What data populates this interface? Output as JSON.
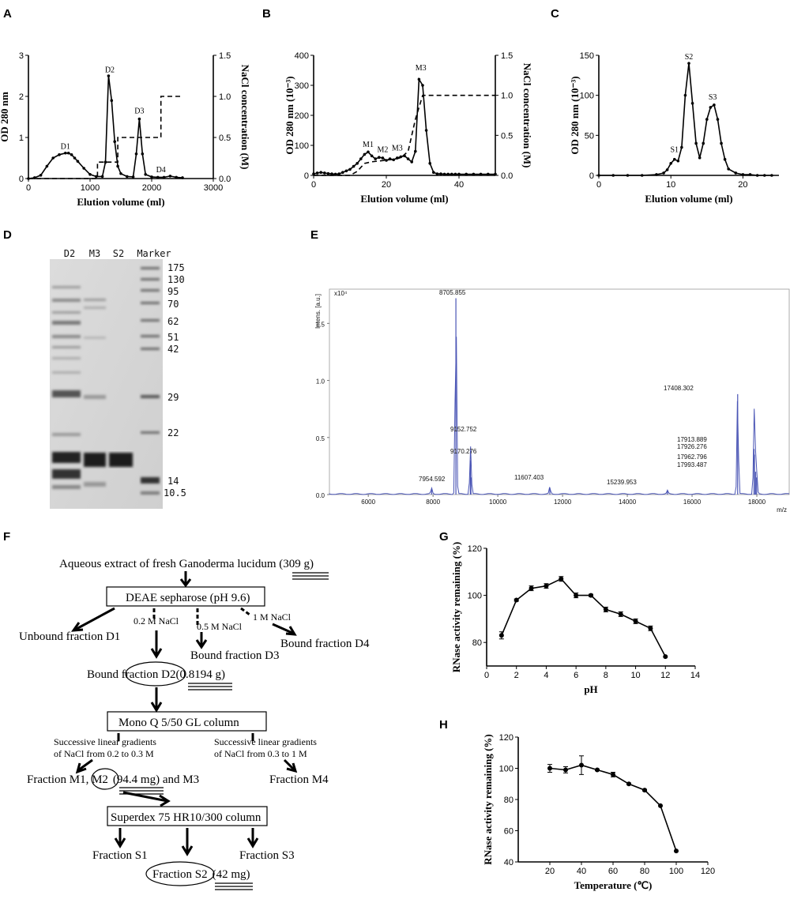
{
  "panel_labels": {
    "A": "A",
    "B": "B",
    "C": "C",
    "D": "D",
    "E": "E",
    "F": "F",
    "G": "G",
    "H": "H"
  },
  "chart_data": [
    {
      "panel": "A",
      "type": "line",
      "xlabel": "Elution volume (ml)",
      "ylabel": "OD 280 nm",
      "y2label": "NaCl concentration (M)",
      "xlim": [
        0,
        3000
      ],
      "ylim": [
        0,
        3
      ],
      "y2lim": [
        0,
        1.5
      ],
      "xticks": [
        "0",
        "1000",
        "2000",
        "3000"
      ],
      "yticks": [
        "0",
        "1",
        "2",
        "3"
      ],
      "y2ticks": [
        "0.0",
        "0.5",
        "1.0",
        "1.5"
      ],
      "peak_labels": [
        {
          "text": "D1",
          "x": 600,
          "y": 0.68
        },
        {
          "text": "D2",
          "x": 1320,
          "y": 2.55
        },
        {
          "text": "D3",
          "x": 1800,
          "y": 1.55
        },
        {
          "text": "D4",
          "x": 2150,
          "y": 0.12
        }
      ],
      "series": [
        {
          "line": "solid",
          "marker": "dot",
          "x": [
            0,
            100,
            200,
            300,
            400,
            500,
            600,
            650,
            700,
            750,
            800,
            900,
            1000,
            1100,
            1200,
            1250,
            1300,
            1350,
            1400,
            1450,
            1500,
            1600,
            1700,
            1750,
            1800,
            1850,
            1900,
            2000,
            2100,
            2200,
            2300,
            2400,
            2500
          ],
          "y": [
            0,
            0.02,
            0.08,
            0.3,
            0.5,
            0.58,
            0.62,
            0.62,
            0.58,
            0.5,
            0.42,
            0.25,
            0.1,
            0.05,
            0.05,
            0.4,
            2.5,
            1.9,
            0.9,
            0.3,
            0.12,
            0.05,
            0.04,
            0.6,
            1.45,
            0.6,
            0.1,
            0.04,
            0.03,
            0.03,
            0.06,
            0.03,
            0.02
          ]
        },
        {
          "line": "dashed",
          "axis": "y2",
          "x": [
            0,
            1120,
            1120,
            1450,
            1450,
            1550,
            1550,
            1850,
            1850,
            2150,
            2150,
            2500
          ],
          "y": [
            0,
            0,
            0.2,
            0.2,
            0.5,
            0.5,
            0.5,
            0.5,
            0.5,
            0.5,
            1.0,
            1.0
          ]
        }
      ]
    },
    {
      "panel": "B",
      "type": "line",
      "xlabel": "Elution volume (ml)",
      "ylabel": "OD 280 nm (10⁻³)",
      "y2label": "NaCl concentration (M)",
      "xlim": [
        0,
        50
      ],
      "ylim": [
        0,
        400
      ],
      "y2lim": [
        0,
        1.5
      ],
      "xticks": [
        "0",
        "20",
        "40"
      ],
      "yticks": [
        "0",
        "100",
        "200",
        "300",
        "400"
      ],
      "y2ticks": [
        "0.0",
        "0.5",
        "1.0",
        "1.5"
      ],
      "peak_labels": [
        {
          "text": "M1",
          "x": 15,
          "y": 90
        },
        {
          "text": "M2",
          "x": 19,
          "y": 72
        },
        {
          "text": "M3",
          "x": 23,
          "y": 78
        },
        {
          "text": "M3",
          "x": 29.5,
          "y": 345
        }
      ],
      "series": [
        {
          "line": "solid",
          "marker": "dot",
          "x": [
            0,
            1,
            2,
            3,
            4,
            5,
            6,
            7,
            8,
            9,
            10,
            11,
            12,
            13,
            14,
            15,
            16,
            17,
            18,
            19,
            20,
            21,
            22,
            23,
            24,
            25,
            26,
            27,
            28,
            29,
            30,
            31,
            32,
            33,
            34,
            35,
            36,
            37,
            38,
            39,
            40,
            42,
            44,
            46,
            48,
            50
          ],
          "y": [
            5,
            8,
            10,
            8,
            6,
            5,
            4,
            5,
            10,
            15,
            20,
            30,
            40,
            55,
            70,
            78,
            65,
            55,
            60,
            58,
            50,
            55,
            52,
            58,
            62,
            65,
            55,
            45,
            80,
            320,
            300,
            150,
            40,
            10,
            5,
            5,
            4,
            4,
            4,
            4,
            4,
            4,
            4,
            4,
            4,
            4
          ]
        },
        {
          "line": "dashed",
          "axis": "y2",
          "x": [
            0,
            10,
            12,
            14,
            16,
            18,
            20,
            22,
            24,
            26,
            28,
            30,
            50
          ],
          "y": [
            0,
            0,
            0.05,
            0.15,
            0.17,
            0.18,
            0.19,
            0.2,
            0.22,
            0.3,
            0.7,
            1.0,
            1.0
          ]
        }
      ]
    },
    {
      "panel": "C",
      "type": "line",
      "xlabel": "Elution volume (ml)",
      "ylabel": "OD 280 nm (10⁻³)",
      "xlim": [
        0,
        25
      ],
      "ylim": [
        0,
        150
      ],
      "xticks": [
        "0",
        "10",
        "20"
      ],
      "yticks": [
        "0",
        "50",
        "100",
        "150"
      ],
      "peak_labels": [
        {
          "text": "S1",
          "x": 10.5,
          "y": 27
        },
        {
          "text": "S2",
          "x": 12.5,
          "y": 143
        },
        {
          "text": "S3",
          "x": 15.8,
          "y": 93
        }
      ],
      "series": [
        {
          "line": "solid",
          "marker": "dot",
          "x": [
            0,
            2,
            4,
            6,
            8,
            9,
            9.5,
            10,
            10.5,
            11,
            11.5,
            12,
            12.5,
            13,
            13.5,
            14,
            14.5,
            15,
            15.5,
            16,
            16.5,
            17,
            17.5,
            18,
            19,
            20,
            21,
            22,
            23,
            24
          ],
          "y": [
            0,
            0,
            0,
            0,
            1,
            3,
            7,
            15,
            20,
            18,
            35,
            100,
            140,
            90,
            40,
            22,
            40,
            70,
            85,
            88,
            70,
            40,
            20,
            8,
            3,
            1,
            1,
            0,
            0,
            0
          ]
        }
      ]
    },
    {
      "panel": "E",
      "type": "line",
      "xlabel": "m/z",
      "ylabel": "Intens. [a.u.]",
      "ymult": "x10⁴",
      "xlim": [
        4800,
        19000
      ],
      "ylim": [
        0,
        1.8
      ],
      "xticks": [
        "6000",
        "8000",
        "10000",
        "12000",
        "14000",
        "16000",
        "18000"
      ],
      "yticks": [
        "0.0",
        "0.5",
        "1.0",
        "1.5"
      ],
      "peaks": [
        {
          "mz": 7954.592,
          "label": "7954.592",
          "i": 0.05
        },
        {
          "mz": 8705.855,
          "label": "8705.855",
          "i": 1.72
        },
        {
          "mz": 9152.752,
          "label": "9152.752",
          "i": 0.3
        },
        {
          "mz": 9170.276,
          "label": "9170.276",
          "i": 0.15
        },
        {
          "mz": 11607.403,
          "label": "11607.403",
          "i": 0.06
        },
        {
          "mz": 15239.953,
          "label": "15239.953",
          "i": 0.03
        },
        {
          "mz": 17408.302,
          "label": "17408.302",
          "i": 0.88
        },
        {
          "mz": 17913.889,
          "label": "17913.889",
          "i": 0.4
        },
        {
          "mz": 17926.276,
          "label": "17926.276",
          "i": 0.35
        },
        {
          "mz": 17962.796,
          "label": "17962.796",
          "i": 0.2
        },
        {
          "mz": 17993.487,
          "label": "17993.487",
          "i": 0.15
        }
      ]
    },
    {
      "panel": "G",
      "type": "line",
      "xlabel": "pH",
      "ylabel": "RNase activity remaining (%)",
      "xlim": [
        0,
        14
      ],
      "ylim": [
        70,
        120
      ],
      "xticks": [
        "0",
        "2",
        "4",
        "6",
        "8",
        "10",
        "12",
        "14"
      ],
      "yticks": [
        "80",
        "100",
        "120"
      ],
      "series": [
        {
          "line": "solid",
          "marker": "dot",
          "x": [
            1,
            2,
            3,
            4,
            5,
            6,
            7,
            8,
            9,
            10,
            11,
            12
          ],
          "y": [
            83,
            98,
            103,
            104,
            107,
            100,
            100,
            94,
            92,
            89,
            86,
            74
          ],
          "err": [
            1.5,
            0.5,
            1,
            1,
            1,
            1,
            0.5,
            1,
            1,
            1,
            1,
            0
          ]
        }
      ]
    },
    {
      "panel": "H",
      "type": "line",
      "xlabel": "Temperature (℃)",
      "ylabel": "RNase activity remaining (%)",
      "xlim": [
        0,
        120
      ],
      "ylim": [
        40,
        120
      ],
      "xticks": [
        "20",
        "40",
        "60",
        "80",
        "100",
        "120"
      ],
      "yticks": [
        "40",
        "60",
        "80",
        "100",
        "120"
      ],
      "series": [
        {
          "line": "solid",
          "marker": "dot",
          "x": [
            20,
            30,
            40,
            50,
            60,
            70,
            80,
            90,
            100
          ],
          "y": [
            100,
            99,
            102,
            99,
            96,
            90,
            86,
            76,
            47
          ],
          "err": [
            2.5,
            2,
            6,
            0.5,
            1.5,
            0.5,
            0.5,
            0,
            0
          ]
        }
      ]
    }
  ],
  "gel": {
    "lanes": [
      "D2",
      "M3",
      "S2",
      "Marker"
    ],
    "markers": [
      "175",
      "130",
      "95",
      "70",
      "62",
      "51",
      "42",
      "29",
      "22",
      "14",
      "10.5"
    ]
  },
  "flow": {
    "top": "Aqueous extract of  fresh Ganoderma lucidum ",
    "top_amount": "(309 g)",
    "deae": "DEAE sepharose (pH 9.6)",
    "unbound": "Unbound fraction D1",
    "nacl02": "0.2 M NaCl",
    "nacl05": "0.5 M NaCl",
    "nacl1": "1 M NaCl",
    "d3": "Bound fraction D3",
    "d4": "Bound fraction D4",
    "d2_pre": "Bound ",
    "d2_circ": "fraction D2",
    "d2_amount": "(0.8194 g)",
    "monoq": "Mono Q 5/50 GL column",
    "grad1a": "Successive linear gradients",
    "grad1b": "of NaCl from 0.2 to 0.3 M",
    "grad2a": "Successive linear gradients",
    "grad2b": "of NaCl from 0.3 to 1 M",
    "m_pre": "Fraction M1, ",
    "m2": "M2",
    "m_amount": "(94.4 mg)",
    "m_post": " and M3",
    "m4": "Fraction M4",
    "superdex": "Superdex 75 HR10/300 column",
    "s1": "Fraction S1",
    "s3": "Fraction S3",
    "s2": "Fraction S2",
    "s2_amount": "(42 mg)"
  }
}
